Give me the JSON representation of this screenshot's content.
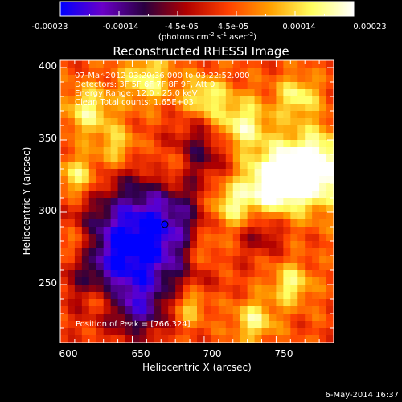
{
  "colorbar": {
    "ticks": [
      "-0.00023",
      "-0.00014",
      "-4.5e-05",
      "4.5e-05",
      "0.00014",
      "0.00023"
    ],
    "units_prefix": "(photons cm",
    "units_exp1": "-2",
    "units_mid": " s",
    "units_exp2": "-1",
    "units_mid2": " asec",
    "units_exp3": "-2",
    "units_suffix": ")",
    "colors": [
      "#0000ff",
      "#6a00c8",
      "#2a0040",
      "#b00000",
      "#ff4000",
      "#ffa000",
      "#ffff60",
      "#ffffff"
    ]
  },
  "annotation": {
    "line1": "07-Mar-2012 03:20:36.000 to 03:22:52.000",
    "line2": "Detectors: 3F 5F 6F 7F 8F 9F, Att 0",
    "line3": "Energy Range: 12.0 - 25.0 keV",
    "line4": "Clean     Total counts: 1.65E+03",
    "peak": "Position of Peak = [766,324]"
  },
  "footer": {
    "date": "6-May-2014 16:37"
  },
  "chart_data": {
    "type": "heatmap",
    "title": "Reconstructed RHESSI Image",
    "xlabel": "Heliocentric X (arcsec)",
    "ylabel": "Heliocentric Y (arcsec)",
    "xlim": [
      600,
      790
    ],
    "ylim": [
      210,
      405
    ],
    "x_ticks": [
      600,
      650,
      700,
      750
    ],
    "y_ticks": [
      250,
      300,
      350,
      400
    ],
    "x_tick_labels": [
      "600",
      "650",
      "700",
      "750"
    ],
    "y_tick_labels": [
      "250",
      "300",
      "350",
      "400"
    ],
    "colorbar_range": [
      -0.00023,
      0.00023
    ],
    "grid_cols": 38,
    "grid_rows": 39,
    "peak_position": [
      766,
      324
    ]
  }
}
